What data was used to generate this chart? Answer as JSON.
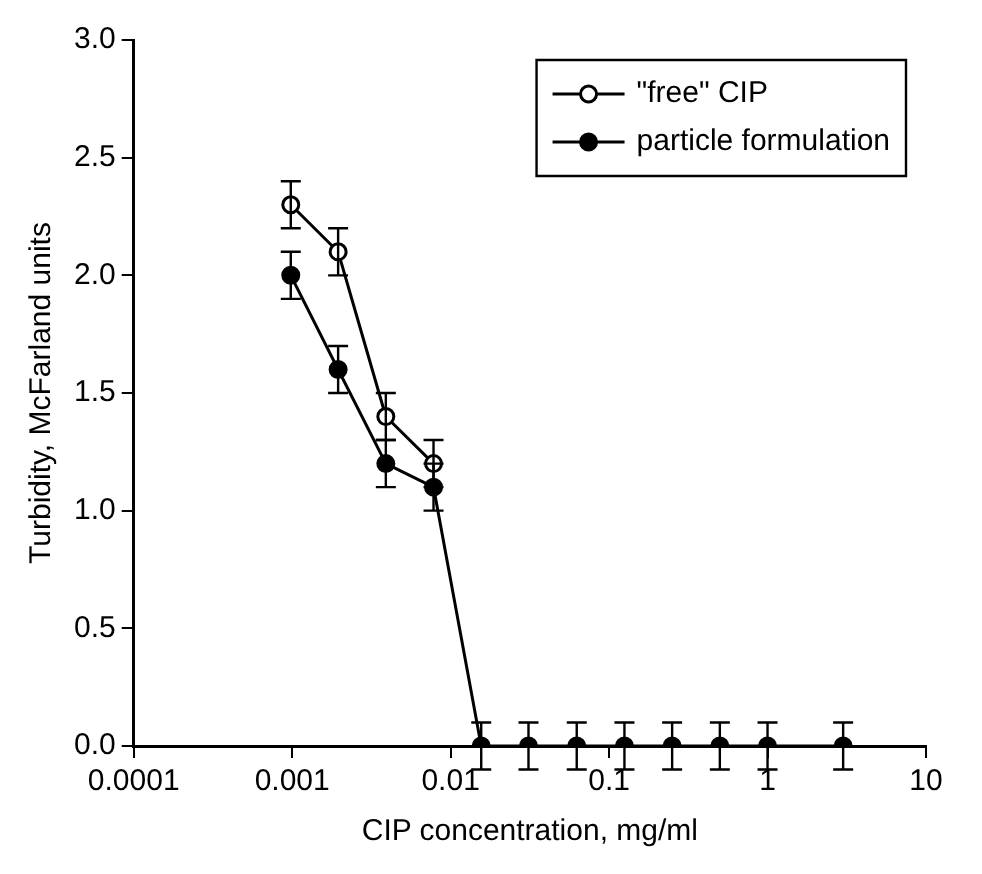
{
  "chart_data": {
    "type": "line",
    "xlabel": "CIP concentration, mg/ml",
    "ylabel": "Turbidity, McFarland units",
    "log": "x",
    "xlim": [
      0.0001,
      10
    ],
    "xticks": [
      0.0001,
      0.001,
      0.01,
      0.1,
      1,
      10
    ],
    "ylim": [
      0,
      3
    ],
    "yticks": [
      {
        "value": 0,
        "label": "0.0"
      },
      {
        "value": 0.5,
        "label": "0.5"
      },
      {
        "value": 1,
        "label": "1.0"
      },
      {
        "value": 1.5,
        "label": "1.5"
      },
      {
        "value": 2,
        "label": "2.0"
      },
      {
        "value": 2.5,
        "label": "2.5"
      },
      {
        "value": 3,
        "label": "3.0"
      }
    ],
    "x": [
      0.00098,
      0.00195,
      0.0039,
      0.0078,
      0.0156,
      0.031,
      0.0625,
      0.125,
      0.25,
      0.5,
      1,
      3
    ],
    "series": [
      {
        "name": "\"free\" CIP",
        "color": "#000000",
        "values": [
          2.3,
          2.1,
          1.4,
          1.2,
          null,
          null,
          null,
          null,
          null,
          null,
          null,
          null
        ],
        "errors": [
          0.1,
          0.1,
          0.1,
          0.1,
          null,
          null,
          null,
          null,
          null,
          null,
          null,
          null
        ]
      },
      {
        "name": "particle formulation",
        "color": "#000000",
        "values": [
          2.0,
          1.6,
          1.2,
          1.1,
          0,
          0,
          0,
          0,
          0,
          0,
          0,
          0
        ],
        "errors": [
          0.1,
          0.1,
          0.1,
          0.1,
          0.1,
          0.1,
          0.1,
          0.1,
          0.1,
          0.1,
          0.1,
          0.1
        ]
      }
    ],
    "marker": "circle",
    "line_style": "solid",
    "grid": false,
    "legend": "top right"
  }
}
